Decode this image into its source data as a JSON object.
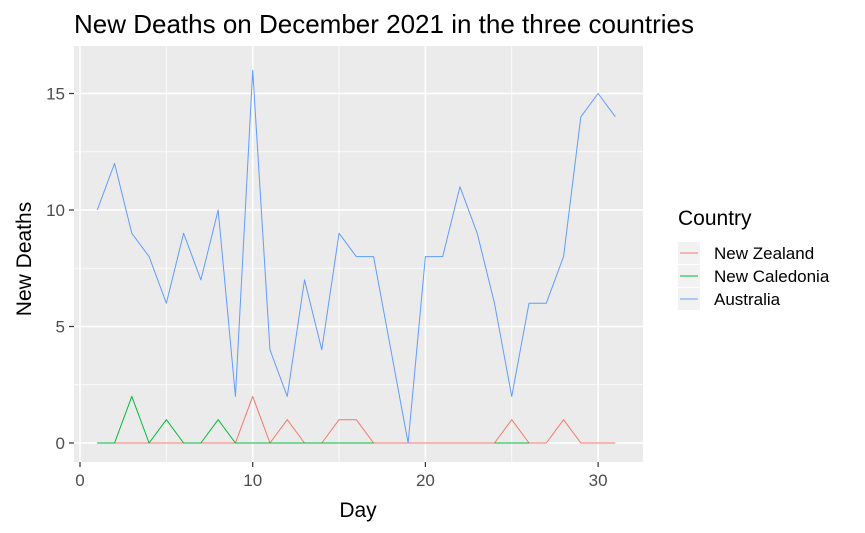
{
  "chart_data": {
    "type": "line",
    "title": "New Deaths on December 2021 in the three countries",
    "xlabel": "Day",
    "ylabel": "New Deaths",
    "xlim": [
      0,
      31.5
    ],
    "ylim": [
      -0.8,
      16
    ],
    "x_ticks": [
      0,
      10,
      20,
      30
    ],
    "y_ticks": [
      0,
      5,
      10,
      15
    ],
    "x_tick_labels": [
      "0",
      "10",
      "20",
      "30"
    ],
    "y_tick_labels": [
      "0",
      "5",
      "10",
      "15"
    ],
    "grid": true,
    "legend": {
      "title": "Country",
      "position": "right"
    },
    "x": [
      1,
      2,
      3,
      4,
      5,
      6,
      7,
      8,
      9,
      10,
      11,
      12,
      13,
      14,
      15,
      16,
      17,
      18,
      19,
      20,
      21,
      22,
      23,
      24,
      25,
      26,
      27,
      28,
      29,
      30,
      31
    ],
    "series": [
      {
        "name": "New Zealand",
        "color": "#F8766D",
        "values": [
          0,
          0,
          0,
          0,
          0,
          0,
          0,
          0,
          0,
          2,
          0,
          1,
          0,
          0,
          1,
          1,
          0,
          0,
          0,
          0,
          0,
          0,
          0,
          0,
          1,
          0,
          0,
          1,
          0,
          0,
          0
        ]
      },
      {
        "name": "New Caledonia",
        "color": "#00BA38",
        "values": [
          0,
          0,
          2,
          0,
          1,
          0,
          0,
          1,
          0,
          0,
          0,
          0,
          0,
          0,
          0,
          0,
          0,
          null,
          null,
          null,
          null,
          null,
          null,
          0,
          0,
          0,
          null,
          null,
          null,
          null,
          null
        ]
      },
      {
        "name": "Australia",
        "color": "#619CFF",
        "values": [
          10,
          12,
          9,
          8,
          6,
          9,
          7,
          10,
          2,
          16,
          4,
          2,
          7,
          4,
          9,
          8,
          8,
          4,
          0,
          8,
          8,
          11,
          9,
          6,
          2,
          6,
          6,
          8,
          14,
          15,
          14
        ]
      }
    ]
  }
}
